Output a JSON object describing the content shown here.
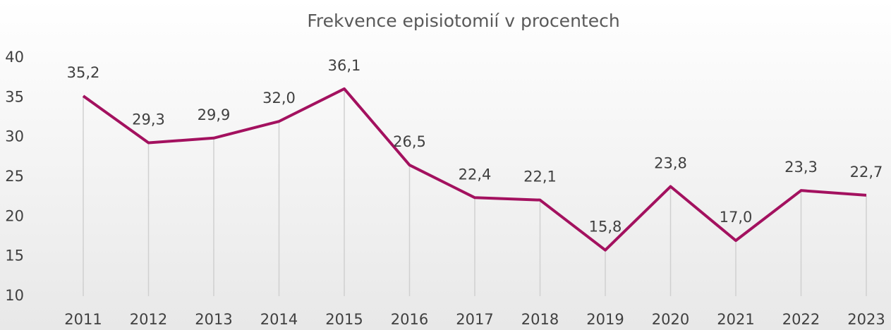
{
  "chart_data": {
    "type": "line",
    "title": "Frekvence episiotomií v procentech",
    "categories": [
      "2011",
      "2012",
      "2013",
      "2014",
      "2015",
      "2016",
      "2017",
      "2018",
      "2019",
      "2020",
      "2021",
      "2022",
      "2023"
    ],
    "series": [
      {
        "name": "Frekvence episiotomií",
        "color": "#a3115f",
        "values": [
          35.2,
          29.3,
          29.9,
          32.0,
          36.1,
          26.5,
          22.4,
          22.1,
          15.8,
          23.8,
          17.0,
          23.3,
          22.7
        ],
        "value_labels": [
          "35,2",
          "29,3",
          "29,9",
          "32,0",
          "36,1",
          "26,5",
          "22,4",
          "22,1",
          "15,8",
          "23,8",
          "17,0",
          "23,3",
          "22,7"
        ]
      }
    ],
    "ylim": [
      10,
      40
    ],
    "yticks": [
      10,
      15,
      20,
      25,
      30,
      35,
      40
    ],
    "drop_lines": true
  }
}
